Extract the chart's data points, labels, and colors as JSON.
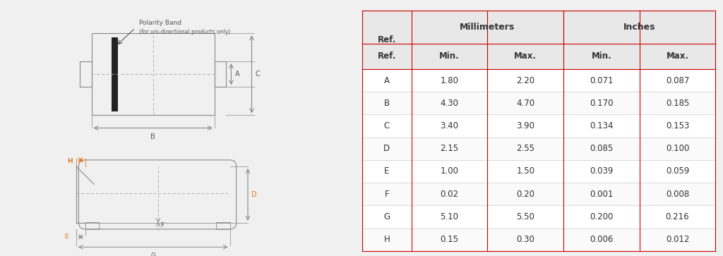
{
  "table_refs": [
    "A",
    "B",
    "C",
    "D",
    "E",
    "F",
    "G",
    "H"
  ],
  "mm_min": [
    1.8,
    4.3,
    3.4,
    2.15,
    1.0,
    0.02,
    5.1,
    0.15
  ],
  "mm_max": [
    2.2,
    4.7,
    3.9,
    2.55,
    1.5,
    0.2,
    5.5,
    0.3
  ],
  "in_min": [
    0.071,
    0.17,
    0.134,
    0.085,
    0.039,
    0.001,
    0.2,
    0.006
  ],
  "in_max": [
    0.087,
    0.185,
    0.153,
    0.1,
    0.059,
    0.008,
    0.216,
    0.012
  ],
  "col_header_row1": [
    "",
    "Millimeters",
    "",
    "Inches",
    ""
  ],
  "col_header_row2": [
    "Ref.",
    "Min.",
    "Max.",
    "Min.",
    "Max."
  ],
  "bg_color": "#f0f0f0",
  "diagram_bg": "#f4f4f4",
  "table_bg": "#ffffff",
  "header_bg": "#e8e8e8",
  "line_color": "#999999",
  "border_color": "#cc0000",
  "text_color": "#333333",
  "label_color": "#555555",
  "orange_color": "#e07820",
  "polarity_text": "Polarity Band",
  "polarity_subtext": "(for uni-directional products only)"
}
